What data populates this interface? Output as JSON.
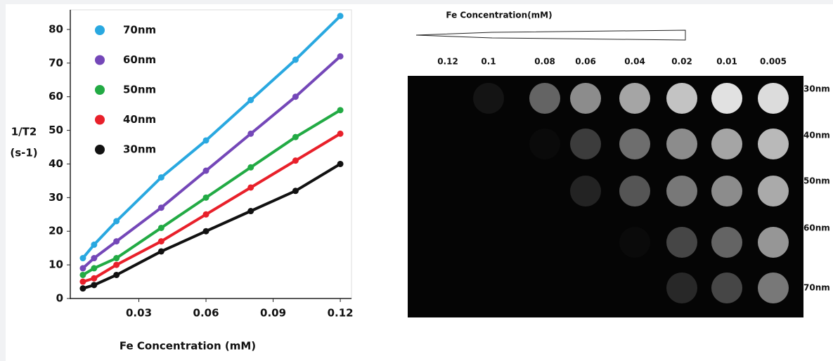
{
  "chart_data": {
    "type": "scatter",
    "y_label": [
      "1/T2",
      "(s-1)"
    ],
    "x_label": "Fe Concentration (mM)",
    "x": [
      0.005,
      0.01,
      0.02,
      0.04,
      0.06,
      0.08,
      0.1,
      0.12
    ],
    "series": [
      {
        "name": "70nm",
        "color": "#29a8e0",
        "values": [
          12,
          16,
          23,
          36,
          47,
          59,
          71,
          84
        ]
      },
      {
        "name": "60nm",
        "color": "#7447b8",
        "values": [
          9,
          12,
          17,
          27,
          38,
          49,
          60,
          72
        ]
      },
      {
        "name": "50nm",
        "color": "#22aa44",
        "values": [
          7,
          9,
          12,
          21,
          30,
          39,
          48,
          56
        ]
      },
      {
        "name": "40nm",
        "color": "#e8202a",
        "values": [
          5,
          6,
          10,
          17,
          25,
          33,
          41,
          49
        ]
      },
      {
        "name": "30nm",
        "color": "#111111",
        "values": [
          3,
          4,
          7,
          14,
          20,
          26,
          32,
          40
        ]
      }
    ],
    "xlim": [
      0,
      0.125
    ],
    "xticks": [
      0.03,
      0.06,
      0.09,
      0.12
    ],
    "ylim": [
      0,
      85
    ],
    "yticks": [
      0,
      10,
      20,
      30,
      40,
      50,
      60,
      70,
      80
    ]
  },
  "phantom": {
    "title": "Fe Concentration(mM)",
    "columns": [
      "0.12",
      "0.1",
      "0.08",
      "0.06",
      "0.04",
      "0.02",
      "0.01",
      "0.005"
    ],
    "rows": [
      "30nm",
      "40nm",
      "50nm",
      "60nm",
      "70nm"
    ]
  }
}
